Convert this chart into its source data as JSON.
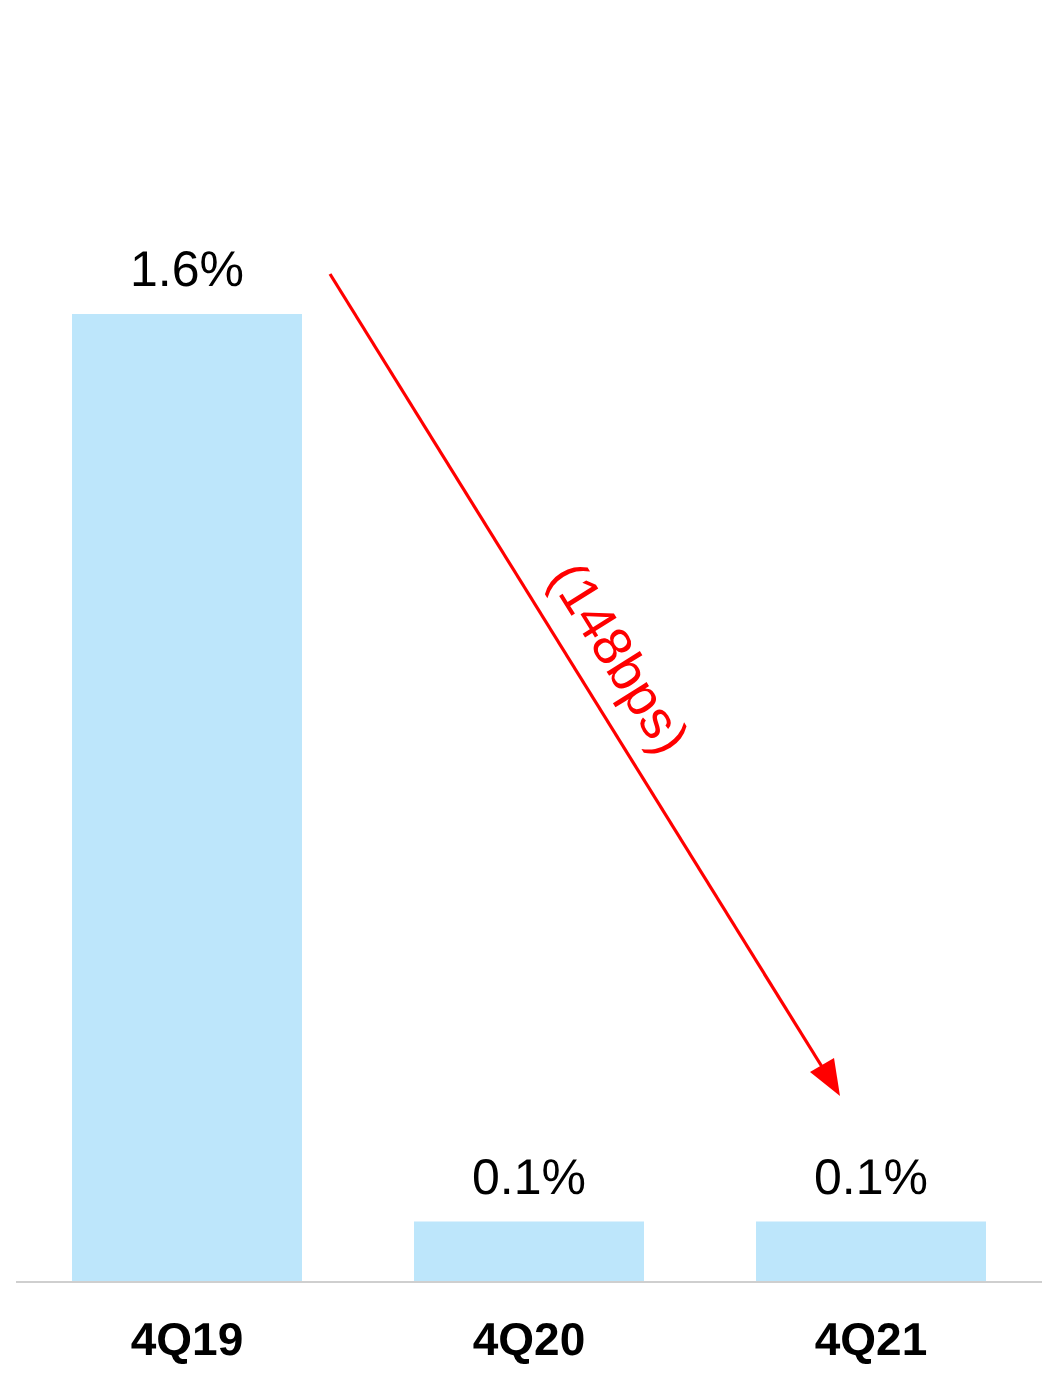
{
  "chart_data": {
    "type": "bar",
    "categories": [
      "4Q19",
      "4Q20",
      "4Q21"
    ],
    "values": [
      1.6,
      0.1,
      0.1
    ],
    "value_labels": [
      "1.6%",
      "0.1%",
      "0.1%"
    ],
    "color": "#bde6fb",
    "annotations": [
      "(148bps)"
    ],
    "grid": false,
    "legend": false
  }
}
